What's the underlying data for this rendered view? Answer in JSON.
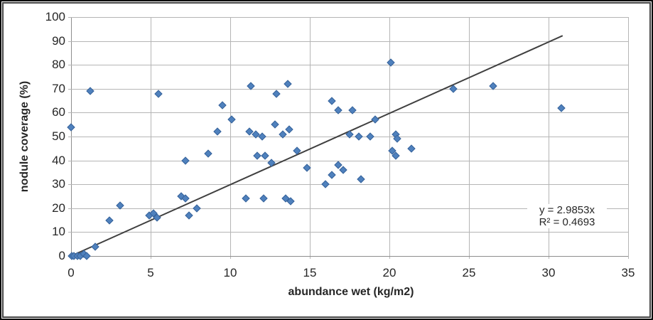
{
  "chart_data": {
    "type": "scatter",
    "title": "",
    "xlabel": "abundance wet (kg/m2)",
    "ylabel": "nodule coverage (%)",
    "xlim": [
      0,
      35
    ],
    "ylim": [
      0,
      100
    ],
    "xticks": [
      0,
      5,
      10,
      15,
      20,
      25,
      30,
      35
    ],
    "yticks": [
      0,
      10,
      20,
      30,
      40,
      50,
      60,
      70,
      80,
      90,
      100
    ],
    "grid": true,
    "legend": "none",
    "points": [
      [
        0,
        54
      ],
      [
        0.05,
        0
      ],
      [
        0.2,
        0
      ],
      [
        0.4,
        0
      ],
      [
        0.6,
        0
      ],
      [
        0.8,
        1
      ],
      [
        1.0,
        0
      ],
      [
        1.2,
        69
      ],
      [
        1.5,
        4
      ],
      [
        2.4,
        15
      ],
      [
        3.1,
        21
      ],
      [
        4.9,
        17
      ],
      [
        5.2,
        18
      ],
      [
        5.4,
        16
      ],
      [
        5.5,
        68
      ],
      [
        6.9,
        25
      ],
      [
        7.2,
        24
      ],
      [
        7.2,
        40
      ],
      [
        7.4,
        17
      ],
      [
        7.9,
        20
      ],
      [
        8.6,
        43
      ],
      [
        9.2,
        52
      ],
      [
        9.5,
        63
      ],
      [
        10.1,
        57
      ],
      [
        11.0,
        24
      ],
      [
        11.2,
        52
      ],
      [
        11.3,
        71
      ],
      [
        11.6,
        51
      ],
      [
        11.7,
        42
      ],
      [
        12.0,
        50
      ],
      [
        12.1,
        24
      ],
      [
        12.2,
        42
      ],
      [
        12.6,
        39
      ],
      [
        12.8,
        55
      ],
      [
        12.9,
        68
      ],
      [
        13.3,
        51
      ],
      [
        13.5,
        24
      ],
      [
        13.6,
        72
      ],
      [
        13.7,
        53
      ],
      [
        13.8,
        23
      ],
      [
        14.2,
        44
      ],
      [
        14.8,
        37
      ],
      [
        16.0,
        30
      ],
      [
        16.4,
        34
      ],
      [
        16.4,
        65
      ],
      [
        16.8,
        38
      ],
      [
        16.8,
        61
      ],
      [
        17.1,
        36
      ],
      [
        17.5,
        51
      ],
      [
        17.7,
        61
      ],
      [
        18.1,
        50
      ],
      [
        18.2,
        32
      ],
      [
        18.8,
        50
      ],
      [
        19.1,
        57
      ],
      [
        20.1,
        81
      ],
      [
        20.2,
        44
      ],
      [
        20.4,
        42
      ],
      [
        20.4,
        51
      ],
      [
        20.5,
        49
      ],
      [
        21.4,
        45
      ],
      [
        24.0,
        70
      ],
      [
        26.5,
        71
      ],
      [
        30.8,
        62
      ]
    ],
    "trendline": {
      "slope": 2.9853,
      "intercept": 0,
      "x_start": 0,
      "x_end": 30.9
    },
    "annotation": {
      "line1": "y = 2.9853x",
      "line2": "R² = 0.4693"
    },
    "colors": {
      "marker_fill": "#4f81bd",
      "marker_edge": "#38639a",
      "trendline": "#3f3f3f",
      "gridline": "#b5b5b5",
      "axis_line": "#8e8e8e",
      "text": "#262626"
    }
  }
}
